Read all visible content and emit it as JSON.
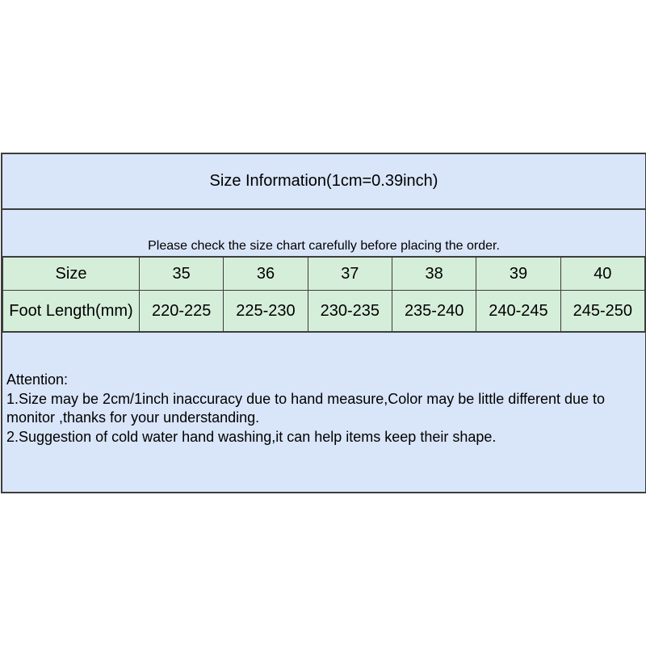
{
  "panel": {
    "title": "Size Information(1cm=0.39inch)",
    "subtitle": "Please check the size chart carefully before placing the order.",
    "colors": {
      "blue_background": "#d9e5f8",
      "green_background": "#d5eed9",
      "border": "#3d3d3d",
      "text": "#000000",
      "page_background": "#ffffff"
    }
  },
  "size_table": {
    "header_label": "Size",
    "sizes": [
      "35",
      "36",
      "37",
      "38",
      "39",
      "40"
    ],
    "row_label": "Foot Length(mm)",
    "foot_lengths": [
      "220-225",
      "225-230",
      "230-235",
      "235-240",
      "240-245",
      "245-250"
    ]
  },
  "attention": {
    "heading": "Attention:",
    "lines": [
      "1.Size may be 2cm/1inch inaccuracy due to hand measure,Color may be little different due to monitor ,thanks for your understanding.",
      "2.Suggestion of cold water hand washing,it can help items keep their shape."
    ]
  },
  "chart_data": {
    "type": "table",
    "title": "Size Information(1cm=0.39inch)",
    "note": "Please check the size chart carefully before placing the order.",
    "columns": [
      "Size",
      "35",
      "36",
      "37",
      "38",
      "39",
      "40"
    ],
    "rows": [
      [
        "Foot Length(mm)",
        "220-225",
        "225-230",
        "230-235",
        "235-240",
        "240-245",
        "245-250"
      ]
    ]
  }
}
